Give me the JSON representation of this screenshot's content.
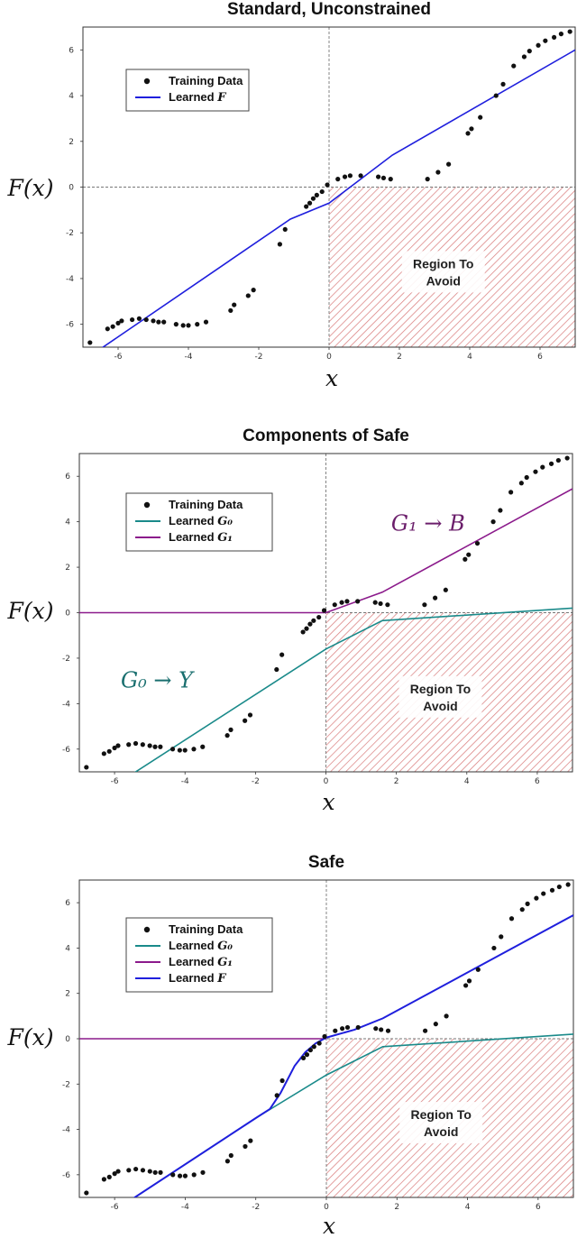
{
  "colors": {
    "points": "#111111",
    "learned_F": "#1f1fdd",
    "learned_G0": "#1a8a8a",
    "learned_G1": "#8b1a8b",
    "region_hatch": "#d97a7a",
    "refline": "#777777"
  },
  "chart_data": [
    {
      "type": "line",
      "title": "Standard, Unconstrained",
      "xlabel": "x",
      "ylabel": "F(x)",
      "xlim": [
        -7,
        7
      ],
      "ylim": [
        -7,
        7
      ],
      "xticks": [
        -6,
        -4,
        -2,
        0,
        2,
        4,
        6
      ],
      "yticks": [
        -6,
        -4,
        -2,
        0,
        2,
        4,
        6
      ],
      "region_label": [
        "Region To",
        "Avoid"
      ],
      "legend": {
        "placement": "upper-left",
        "entries": [
          {
            "label": "Training Data",
            "sub": "",
            "kind": "points",
            "color": "#111111"
          },
          {
            "label": "Learned ",
            "sub": "F",
            "kind": "line",
            "color": "#1f1fdd"
          }
        ]
      },
      "series": [
        {
          "kind": "line",
          "color": "#1f1fdd",
          "x": [
            -7,
            -1.1,
            0,
            1.8,
            7
          ],
          "y": [
            -7.6,
            -1.4,
            -0.7,
            1.4,
            6.0
          ]
        }
      ],
      "annotations": []
    },
    {
      "type": "line",
      "title": "Components of Safe",
      "xlabel": "x",
      "ylabel": "F(x)",
      "xlim": [
        -7,
        7
      ],
      "ylim": [
        -7,
        7
      ],
      "xticks": [
        -6,
        -4,
        -2,
        0,
        2,
        4,
        6
      ],
      "yticks": [
        -6,
        -4,
        -2,
        0,
        2,
        4,
        6
      ],
      "region_label": [
        "Region To",
        "Avoid"
      ],
      "legend": {
        "placement": "upper-left",
        "entries": [
          {
            "label": "Training Data",
            "sub": "",
            "kind": "points",
            "color": "#111111"
          },
          {
            "label": "Learned ",
            "sub": "G₀",
            "kind": "line",
            "color": "#1a8a8a"
          },
          {
            "label": "Learned ",
            "sub": "G₁",
            "kind": "line",
            "color": "#8b1a8b"
          }
        ]
      },
      "series": [
        {
          "kind": "line",
          "color": "#1a8a8a",
          "x": [
            -7,
            0,
            1.6,
            7
          ],
          "y": [
            -8.6,
            -1.6,
            -0.35,
            0.2
          ]
        },
        {
          "kind": "line",
          "color": "#8b1a8b",
          "x": [
            -7,
            0,
            1.6,
            7
          ],
          "y": [
            0,
            0,
            0.9,
            5.45
          ]
        }
      ],
      "annotations": [
        {
          "text": "G₁ → B",
          "x": 2.9,
          "y": 3.6,
          "color": "#6b1e6b"
        },
        {
          "text": "G₀ → Y",
          "x": -4.8,
          "y": -3.3,
          "color": "#1a6f6f"
        }
      ]
    },
    {
      "type": "line",
      "title": "Safe",
      "xlabel": "x",
      "ylabel": "F(x)",
      "xlim": [
        -7,
        7
      ],
      "ylim": [
        -7,
        7
      ],
      "xticks": [
        -6,
        -4,
        -2,
        0,
        2,
        4,
        6
      ],
      "yticks": [
        -6,
        -4,
        -2,
        0,
        2,
        4,
        6
      ],
      "region_label": [
        "Region To",
        "Avoid"
      ],
      "legend": {
        "placement": "upper-left",
        "entries": [
          {
            "label": "Training Data",
            "sub": "",
            "kind": "points",
            "color": "#111111"
          },
          {
            "label": "Learned ",
            "sub": "G₀",
            "kind": "line",
            "color": "#1a8a8a"
          },
          {
            "label": "Learned ",
            "sub": "G₁",
            "kind": "line",
            "color": "#8b1a8b"
          },
          {
            "label": "Learned ",
            "sub": "F",
            "kind": "line",
            "color": "#1f1fdd"
          }
        ]
      },
      "series": [
        {
          "kind": "line",
          "color": "#1a8a8a",
          "x": [
            -7,
            -2,
            0,
            1.6,
            7
          ],
          "y": [
            -8.6,
            -3.5,
            -1.6,
            -0.35,
            0.2
          ]
        },
        {
          "kind": "line",
          "color": "#8b1a8b",
          "x": [
            -7,
            0
          ],
          "y": [
            0,
            0
          ]
        },
        {
          "kind": "line",
          "color": "#1f1fdd",
          "x": [
            -7,
            -2,
            -1.6,
            -1.3,
            -1.1,
            -0.9,
            -0.6,
            -0.3,
            0,
            0.8,
            1.6,
            7
          ],
          "y": [
            -8.6,
            -3.5,
            -3.1,
            -2.4,
            -1.8,
            -1.2,
            -0.6,
            -0.2,
            0.05,
            0.4,
            0.9,
            5.45
          ]
        }
      ],
      "annotations": []
    }
  ],
  "training_data": {
    "x": [
      -6.8,
      -6.3,
      -6.15,
      -6.0,
      -5.9,
      -5.6,
      -5.4,
      -5.2,
      -5.0,
      -4.85,
      -4.7,
      -4.35,
      -4.15,
      -4.0,
      -3.75,
      -3.5,
      -2.8,
      -2.7,
      -2.3,
      -2.15,
      -1.4,
      -1.25,
      -0.65,
      -0.55,
      -0.45,
      -0.35,
      -0.2,
      -0.05,
      0.25,
      0.45,
      0.6,
      0.9,
      1.4,
      1.55,
      1.75,
      2.8,
      3.1,
      3.4,
      3.95,
      4.05,
      4.3,
      4.75,
      4.95,
      5.25,
      5.55,
      5.7,
      5.95,
      6.15,
      6.4,
      6.6,
      6.85
    ],
    "y": [
      -6.8,
      -6.2,
      -6.1,
      -5.95,
      -5.85,
      -5.8,
      -5.75,
      -5.8,
      -5.85,
      -5.9,
      -5.9,
      -6.0,
      -6.05,
      -6.05,
      -6.0,
      -5.9,
      -5.4,
      -5.15,
      -4.75,
      -4.5,
      -2.5,
      -1.85,
      -0.85,
      -0.7,
      -0.5,
      -0.35,
      -0.2,
      0.1,
      0.35,
      0.45,
      0.5,
      0.5,
      0.45,
      0.4,
      0.35,
      0.35,
      0.65,
      1.0,
      2.35,
      2.55,
      3.05,
      4.0,
      4.5,
      5.3,
      5.7,
      5.95,
      6.2,
      6.4,
      6.55,
      6.7,
      6.8
    ]
  }
}
